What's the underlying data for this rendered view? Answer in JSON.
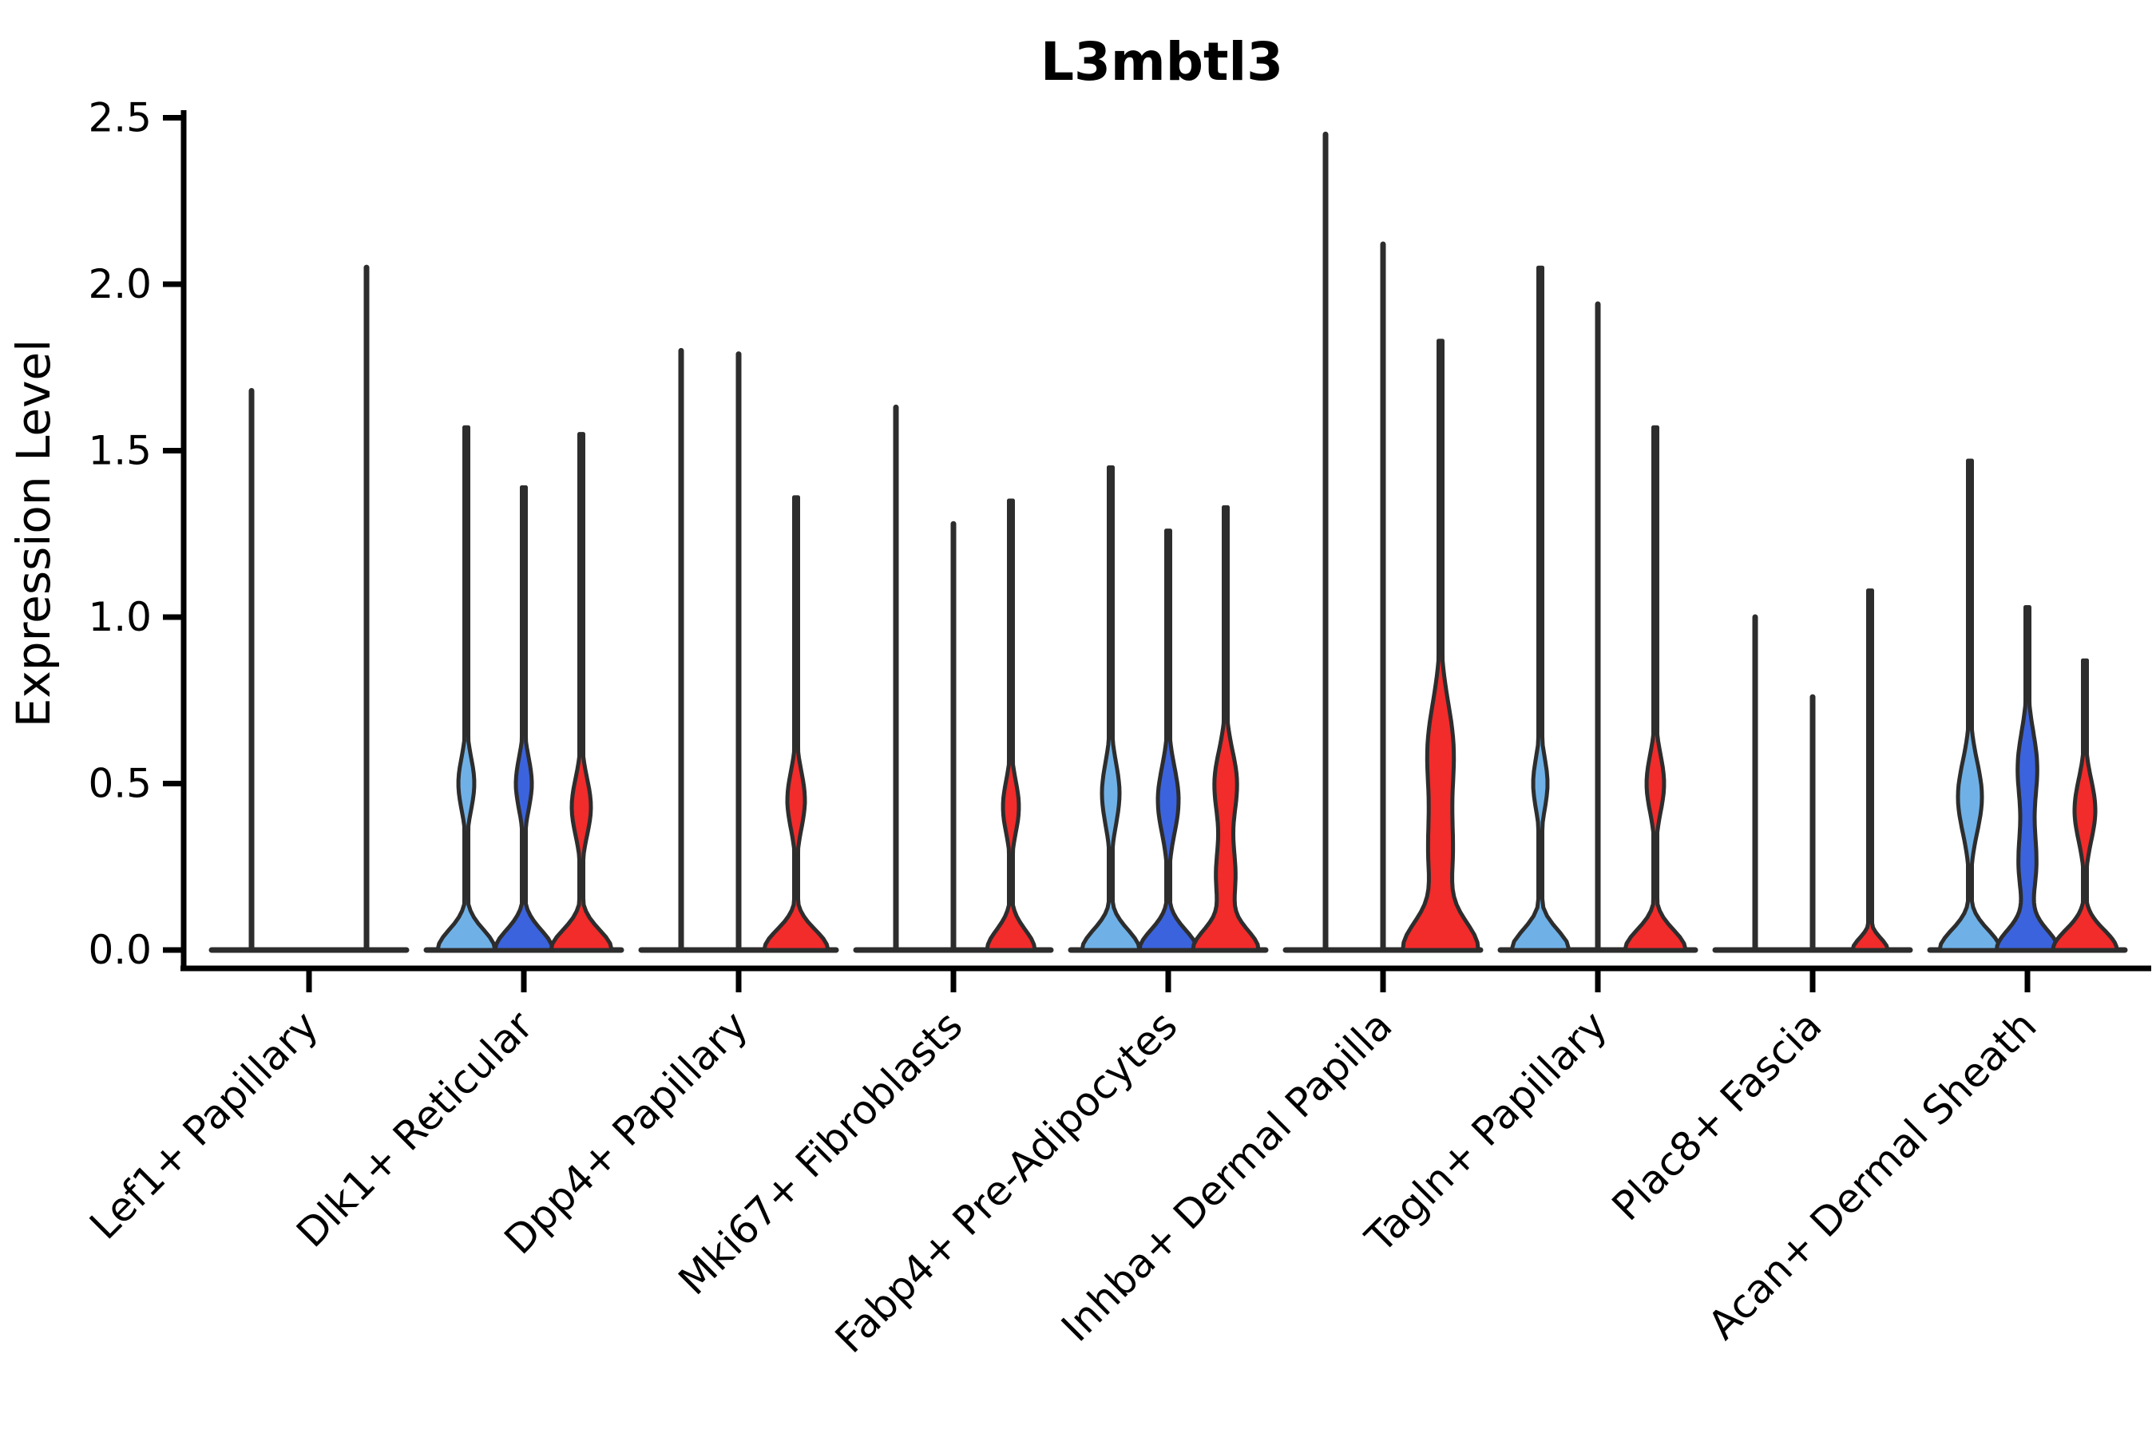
{
  "chart_data": {
    "type": "violin",
    "title": "L3mbtl3",
    "ylabel": "Expression Level",
    "xlabel": "",
    "ylim": [
      0,
      2.6
    ],
    "yticks": [
      0.0,
      0.5,
      1.0,
      1.5,
      2.0,
      2.5
    ],
    "ytick_labels": [
      "0.0",
      "0.5",
      "1.0",
      "1.5",
      "2.0",
      "2.5"
    ],
    "xtick_rotation": 45,
    "grid": false,
    "legend": "none",
    "background_color": "#ffffff",
    "edge_color": "#2d2d2d",
    "axis_color": "#000000",
    "hue_order": [
      "light_blue",
      "dark_blue",
      "red"
    ],
    "hue_colors": {
      "light_blue": "#6fb1e7",
      "dark_blue": "#3b63dd",
      "red": "#f22b2b"
    },
    "categories": [
      "Lef1+ Papillary",
      "Dlk1+ Reticular",
      "Dpp4+ Papillary",
      "Mki67+ Fibroblasts",
      "Fabp4+ Pre-Adipocytes",
      "Inhba+ Dermal Papilla",
      "Tagln+ Papillary",
      "Plac8+ Fascia",
      "Acan+ Dermal Sheath"
    ],
    "groups": [
      {
        "category": "Lef1+ Papillary",
        "violins": [
          {
            "hue": "light_blue",
            "max": 1.68,
            "mound": 0,
            "bulges": []
          },
          {
            "hue": "dark_blue",
            "max": 0.0,
            "mound": 0,
            "bulges": []
          },
          {
            "hue": "red",
            "max": 2.05,
            "mound": 0,
            "bulges": []
          }
        ]
      },
      {
        "category": "Dlk1+ Reticular",
        "violins": [
          {
            "hue": "light_blue",
            "max": 1.57,
            "mound": 36,
            "bulges": [
              {
                "c": 0.5,
                "hw": 10,
                "s": 0.11
              }
            ]
          },
          {
            "hue": "dark_blue",
            "max": 1.39,
            "mound": 36,
            "bulges": [
              {
                "c": 0.5,
                "hw": 10,
                "s": 0.11
              }
            ]
          },
          {
            "hue": "red",
            "max": 1.55,
            "mound": 38,
            "bulges": [
              {
                "c": 0.43,
                "hw": 12,
                "s": 0.12
              }
            ]
          }
        ]
      },
      {
        "category": "Dpp4+ Papillary",
        "violins": [
          {
            "hue": "light_blue",
            "max": 1.8,
            "mound": 0,
            "bulges": []
          },
          {
            "hue": "dark_blue",
            "max": 1.79,
            "mound": 0,
            "bulges": []
          },
          {
            "hue": "red",
            "max": 1.36,
            "mound": 40,
            "bulges": [
              {
                "c": 0.45,
                "hw": 11,
                "s": 0.12
              }
            ]
          }
        ]
      },
      {
        "category": "Mki67+ Fibroblasts",
        "violins": [
          {
            "hue": "light_blue",
            "max": 1.63,
            "mound": 0,
            "bulges": []
          },
          {
            "hue": "dark_blue",
            "max": 1.28,
            "mound": 0,
            "bulges": []
          },
          {
            "hue": "red",
            "max": 1.35,
            "mound": 30,
            "bulges": [
              {
                "c": 0.43,
                "hw": 10,
                "s": 0.11
              }
            ]
          }
        ]
      },
      {
        "category": "Fabp4+ Pre-Adipocytes",
        "violins": [
          {
            "hue": "light_blue",
            "max": 1.45,
            "mound": 36,
            "bulges": [
              {
                "c": 0.47,
                "hw": 11,
                "s": 0.13
              }
            ]
          },
          {
            "hue": "dark_blue",
            "max": 1.26,
            "mound": 36,
            "bulges": [
              {
                "c": 0.45,
                "hw": 13,
                "s": 0.14
              }
            ]
          },
          {
            "hue": "red",
            "max": 1.33,
            "mound": 40,
            "bulges": [
              {
                "c": 0.22,
                "hw": 12,
                "s": 0.14
              },
              {
                "c": 0.5,
                "hw": 14,
                "s": 0.14
              }
            ]
          }
        ]
      },
      {
        "category": "Inhba+ Dermal Papilla",
        "violins": [
          {
            "hue": "light_blue",
            "max": 2.45,
            "mound": 0,
            "bulges": []
          },
          {
            "hue": "dark_blue",
            "max": 2.12,
            "mound": 0,
            "bulges": []
          },
          {
            "hue": "red",
            "max": 1.83,
            "mound": 46,
            "msig": 0.12,
            "bulges": [
              {
                "c": 0.28,
                "hw": 14,
                "s": 0.18
              },
              {
                "c": 0.6,
                "hw": 16,
                "s": 0.2
              }
            ]
          }
        ]
      },
      {
        "category": "Tagln+ Papillary",
        "violins": [
          {
            "hue": "light_blue",
            "max": 2.05,
            "mound": 36,
            "bulges": [
              {
                "c": 0.5,
                "hw": 9,
                "s": 0.11
              }
            ]
          },
          {
            "hue": "dark_blue",
            "max": 1.94,
            "mound": 0,
            "bulges": []
          },
          {
            "hue": "red",
            "max": 1.57,
            "mound": 38,
            "bulges": [
              {
                "c": 0.5,
                "hw": 11,
                "s": 0.12
              }
            ]
          }
        ]
      },
      {
        "category": "Plac8+ Fascia",
        "violins": [
          {
            "hue": "light_blue",
            "max": 1.0,
            "mound": 0,
            "bulges": []
          },
          {
            "hue": "dark_blue",
            "max": 0.76,
            "mound": 0,
            "bulges": []
          },
          {
            "hue": "red",
            "max": 1.08,
            "mound": 22,
            "msig": 0.05,
            "bulges": []
          }
        ]
      },
      {
        "category": "Acan+ Dermal Sheath",
        "violins": [
          {
            "hue": "light_blue",
            "max": 1.47,
            "mound": 38,
            "bulges": [
              {
                "c": 0.46,
                "hw": 15,
                "s": 0.15
              }
            ]
          },
          {
            "hue": "dark_blue",
            "max": 1.03,
            "mound": 38,
            "bulges": [
              {
                "c": 0.26,
                "hw": 11,
                "s": 0.15
              },
              {
                "c": 0.55,
                "hw": 12,
                "s": 0.15
              }
            ]
          },
          {
            "hue": "red",
            "max": 0.87,
            "mound": 40,
            "bulges": [
              {
                "c": 0.42,
                "hw": 13,
                "s": 0.13
              }
            ]
          }
        ]
      }
    ]
  }
}
